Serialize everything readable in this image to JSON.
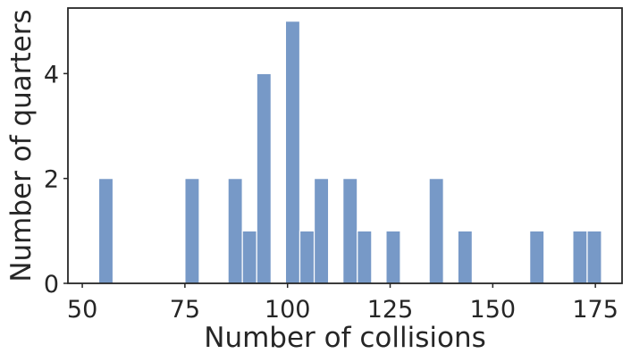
{
  "chart_data": {
    "type": "bar",
    "subtype": "histogram",
    "xlabel": "Number of collisions",
    "ylabel": "Number of quarters",
    "xlim": [
      46.5,
      181.5
    ],
    "ylim": [
      0,
      5.25
    ],
    "xticks": [
      50,
      75,
      100,
      125,
      150,
      175
    ],
    "yticks": [
      0,
      2,
      4
    ],
    "bin_width": 3.5,
    "bar_color": "#7799c7",
    "grid": false,
    "bins": [
      {
        "x0": 54.0,
        "x1": 57.5,
        "count": 2
      },
      {
        "x0": 75.0,
        "x1": 78.5,
        "count": 2
      },
      {
        "x0": 85.5,
        "x1": 89.0,
        "count": 2
      },
      {
        "x0": 89.0,
        "x1": 92.5,
        "count": 1
      },
      {
        "x0": 92.5,
        "x1": 96.0,
        "count": 4
      },
      {
        "x0": 99.5,
        "x1": 103.0,
        "count": 5
      },
      {
        "x0": 103.0,
        "x1": 106.5,
        "count": 1
      },
      {
        "x0": 106.5,
        "x1": 110.0,
        "count": 2
      },
      {
        "x0": 113.5,
        "x1": 117.0,
        "count": 2
      },
      {
        "x0": 117.0,
        "x1": 120.5,
        "count": 1
      },
      {
        "x0": 124.0,
        "x1": 127.5,
        "count": 1
      },
      {
        "x0": 134.5,
        "x1": 138.0,
        "count": 2
      },
      {
        "x0": 141.5,
        "x1": 145.0,
        "count": 1
      },
      {
        "x0": 159.0,
        "x1": 162.5,
        "count": 1
      },
      {
        "x0": 169.5,
        "x1": 173.0,
        "count": 1
      },
      {
        "x0": 173.0,
        "x1": 176.5,
        "count": 1
      }
    ]
  }
}
